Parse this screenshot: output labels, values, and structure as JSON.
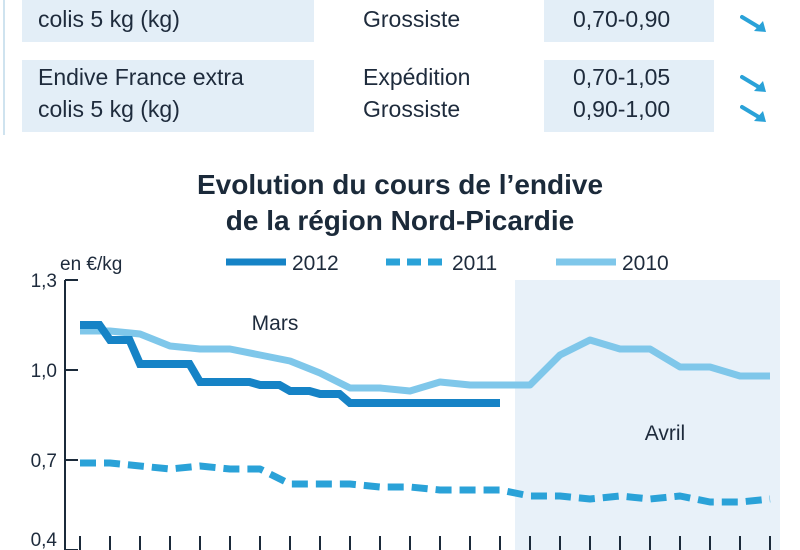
{
  "table": {
    "rows": [
      {
        "product_lines": [
          "",
          "colis 5 kg (kg)"
        ],
        "stages": [
          "",
          "Grossiste"
        ],
        "prices": [
          "",
          "0,70-0,90"
        ],
        "trends": [
          "down-arrow-icon",
          "down-arrow-icon"
        ]
      },
      {
        "product_lines": [
          "Endive France extra",
          "colis 5 kg (kg)"
        ],
        "stages": [
          "Expédition",
          "Grossiste"
        ],
        "prices": [
          "0,70-1,05",
          "0,90-1,00"
        ],
        "trends": [
          "down-arrow-icon",
          "down-arrow-icon"
        ]
      }
    ]
  },
  "colors": {
    "accent_dark": "#1683c6",
    "accent_mid": "#2aa2d8",
    "accent_light": "#7fc7ea",
    "cell_bg": "#e3eef7",
    "shade_bg": "#e8f1f9",
    "text": "#1e2b3c"
  },
  "chart_data": {
    "type": "line",
    "title_lines": [
      "Evolution du cours de l’endive",
      "de la région Nord-Picardie"
    ],
    "ylabel": "en €/kg",
    "ylim": [
      0.4,
      1.3
    ],
    "yticks": [
      1.3,
      1.0,
      0.7,
      0.4
    ],
    "ytick_labels": [
      "1,3",
      "1,0",
      "0,7",
      "0,4"
    ],
    "x_count": 24,
    "period_labels": [
      {
        "label": "Mars",
        "x": 6.5
      },
      {
        "label": "Avril",
        "x": 19.5
      }
    ],
    "shaded_from_x": 14.5,
    "legend_position": "top",
    "series": [
      {
        "name": "2012",
        "style": "solid-thick",
        "color": "#1683c6",
        "x": [
          0,
          1,
          2,
          3,
          4,
          5,
          6,
          7,
          8,
          9,
          10,
          11,
          12,
          13,
          14
        ],
        "values": [
          1.15,
          1.1,
          1.02,
          1.02,
          0.96,
          0.96,
          0.95,
          0.93,
          0.92,
          0.89,
          0.89,
          0.89,
          0.89,
          0.89,
          0.89
        ]
      },
      {
        "name": "2011",
        "style": "dashed",
        "color": "#2aa2d8",
        "x": [
          0,
          1,
          2,
          3,
          4,
          5,
          6,
          7,
          8,
          9,
          10,
          11,
          12,
          13,
          14,
          15,
          16,
          17,
          18,
          19,
          20,
          21,
          22,
          23
        ],
        "values": [
          0.69,
          0.69,
          0.68,
          0.67,
          0.68,
          0.67,
          0.67,
          0.62,
          0.62,
          0.62,
          0.61,
          0.61,
          0.6,
          0.6,
          0.6,
          0.58,
          0.58,
          0.57,
          0.58,
          0.57,
          0.58,
          0.56,
          0.56,
          0.57
        ]
      },
      {
        "name": "2010",
        "style": "solid",
        "color": "#7fc7ea",
        "x": [
          0,
          1,
          2,
          3,
          4,
          5,
          6,
          7,
          8,
          9,
          10,
          11,
          12,
          13,
          14,
          15,
          16,
          17,
          18,
          19,
          20,
          21,
          22,
          23
        ],
        "values": [
          1.13,
          1.13,
          1.12,
          1.08,
          1.07,
          1.07,
          1.05,
          1.03,
          0.99,
          0.94,
          0.94,
          0.93,
          0.96,
          0.95,
          0.95,
          0.95,
          1.05,
          1.1,
          1.07,
          1.07,
          1.01,
          1.01,
          0.98,
          0.98
        ]
      }
    ]
  }
}
